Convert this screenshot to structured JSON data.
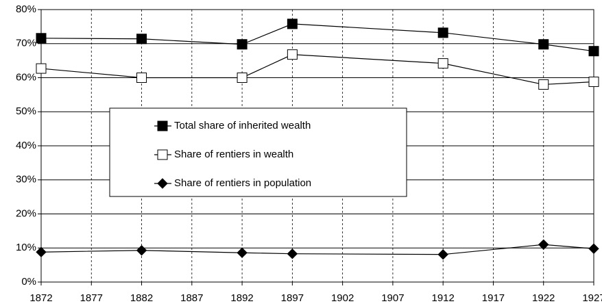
{
  "chart_data": {
    "type": "line",
    "x": [
      1872,
      1882,
      1892,
      1897,
      1912,
      1922,
      1927
    ],
    "series": [
      {
        "name": "Total share of inherited wealth",
        "color": "#000000",
        "marker": "square",
        "values": [
          71.6,
          71.4,
          69.8,
          75.8,
          73.2,
          69.8,
          67.8
        ]
      },
      {
        "name": "Share of rentiers in wealth",
        "color": "#000000",
        "marker": "open-square",
        "values": [
          62.7,
          60.0,
          60.0,
          66.8,
          64.2,
          58.0,
          58.8
        ]
      },
      {
        "name": "Share of rentiers in population",
        "color": "#000000",
        "marker": "diamond",
        "values": [
          8.8,
          9.3,
          8.6,
          8.3,
          8.1,
          11.0,
          9.8
        ]
      }
    ],
    "xlim": [
      1872,
      1927
    ],
    "xticks": [
      1872,
      1877,
      1882,
      1887,
      1892,
      1897,
      1902,
      1907,
      1912,
      1917,
      1922,
      1927
    ],
    "ylim": [
      0,
      80
    ],
    "yticks": [
      {
        "value": 0,
        "label": "0%"
      },
      {
        "value": 10,
        "label": "10%"
      },
      {
        "value": 20,
        "label": "20%"
      },
      {
        "value": 30,
        "label": "30%"
      },
      {
        "value": 40,
        "label": "40%"
      },
      {
        "value": 50,
        "label": "50%"
      },
      {
        "value": 60,
        "label": "60%"
      },
      {
        "value": 70,
        "label": "70%"
      },
      {
        "value": 80,
        "label": "80%"
      }
    ],
    "grid": true,
    "legend": "center-left"
  }
}
